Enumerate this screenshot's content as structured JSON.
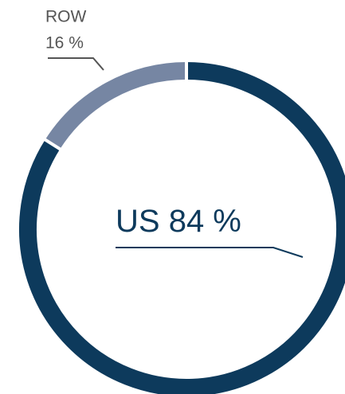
{
  "chart_data": {
    "type": "donut",
    "categories": [
      "US",
      "ROW"
    ],
    "values": [
      84,
      16
    ],
    "value_labels": [
      "84 %",
      "16 %"
    ],
    "colors": [
      "#0d3a5c",
      "#7686a3"
    ]
  }
}
